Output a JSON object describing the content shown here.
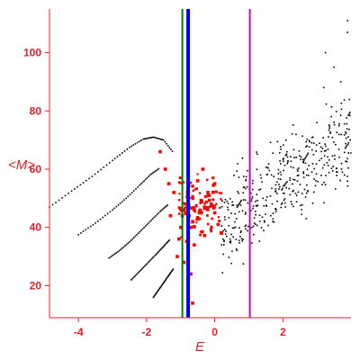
{
  "chart_data": {
    "type": "scatter",
    "xlabel": "E",
    "ylabel": "<M>",
    "xlim": [
      -4.85,
      4.0
    ],
    "ylim": [
      9,
      115
    ],
    "grid": false,
    "x_ticks": [
      -4,
      -2,
      0,
      2
    ],
    "y_ticks": [
      20,
      40,
      60,
      80,
      100
    ],
    "vertical_lines": [
      {
        "x": -0.95,
        "color": "#008000"
      },
      {
        "x": -0.78,
        "color": "#0000ff"
      },
      {
        "x": 1.03,
        "color": "#cc00cc"
      }
    ],
    "series": [
      {
        "marker": "dotted-curves",
        "color": "#000000",
        "curves": [
          {
            "x": [
              -4.85,
              -4.2,
              -3.6,
              -3.0,
              -2.5,
              -2.1,
              -1.8,
              -1.5,
              -1.2
            ],
            "y": [
              47,
              52.5,
              57.5,
              63,
              67.5,
              70.3,
              71.0,
              70.0,
              65.5
            ]
          },
          {
            "x": [
              -4.0,
              -3.5,
              -3.0,
              -2.6,
              -2.2,
              -1.9,
              -1.6
            ],
            "y": [
              37.5,
              41.5,
              46,
              50,
              54.5,
              58.0,
              60.5
            ]
          },
          {
            "x": [
              -3.1,
              -2.8,
              -2.5,
              -2.2,
              -1.9,
              -1.6,
              -1.35
            ],
            "y": [
              29.5,
              32,
              35,
              38.5,
              42,
              45.5,
              48
            ]
          },
          {
            "x": [
              -2.45,
              -2.2,
              -1.95,
              -1.7,
              -1.5,
              -1.3
            ],
            "y": [
              22,
              25,
              28,
              31,
              33.5,
              36
            ]
          },
          {
            "x": [
              -1.8,
              -1.65,
              -1.5,
              -1.35,
              -1.2
            ],
            "y": [
              16,
              18.5,
              21,
              23.5,
              26
            ]
          }
        ]
      },
      {
        "marker": "scatter-cloud",
        "color": "#000000",
        "center_line": {
          "x": [
            0.2,
            4.0
          ],
          "y": [
            42,
            72
          ]
        },
        "spread": 8,
        "extremes": [
          [
            3.9,
            111
          ],
          [
            3.9,
            107
          ],
          [
            3.25,
            100
          ],
          [
            3.5,
            95
          ],
          [
            3.7,
            90
          ],
          [
            3.2,
            88
          ]
        ]
      },
      {
        "marker": "squares",
        "color": "#ff0000",
        "points": [
          [
            -1.1,
            30
          ],
          [
            -1.05,
            36
          ],
          [
            -1.0,
            40
          ],
          [
            -0.95,
            44
          ],
          [
            -0.9,
            46
          ],
          [
            -0.85,
            48
          ],
          [
            -0.8,
            52
          ],
          [
            -0.75,
            44
          ],
          [
            -0.7,
            40
          ],
          [
            -0.6,
            46
          ],
          [
            -0.5,
            43
          ],
          [
            -0.4,
            45
          ],
          [
            -0.3,
            47
          ],
          [
            -0.2,
            52
          ],
          [
            -0.1,
            48
          ],
          [
            0.0,
            45
          ],
          [
            0.1,
            41
          ],
          [
            0.2,
            38
          ],
          [
            -0.5,
            56
          ],
          [
            -0.35,
            60
          ],
          [
            0.0,
            55
          ],
          [
            -0.6,
            34
          ],
          [
            -0.9,
            28
          ],
          [
            -1.2,
            52
          ],
          [
            -1.35,
            55
          ],
          [
            -1.45,
            60
          ],
          [
            -1.6,
            66
          ],
          [
            -1.3,
            44
          ],
          [
            -0.7,
            24
          ],
          [
            -0.65,
            14
          ]
        ]
      }
    ]
  }
}
